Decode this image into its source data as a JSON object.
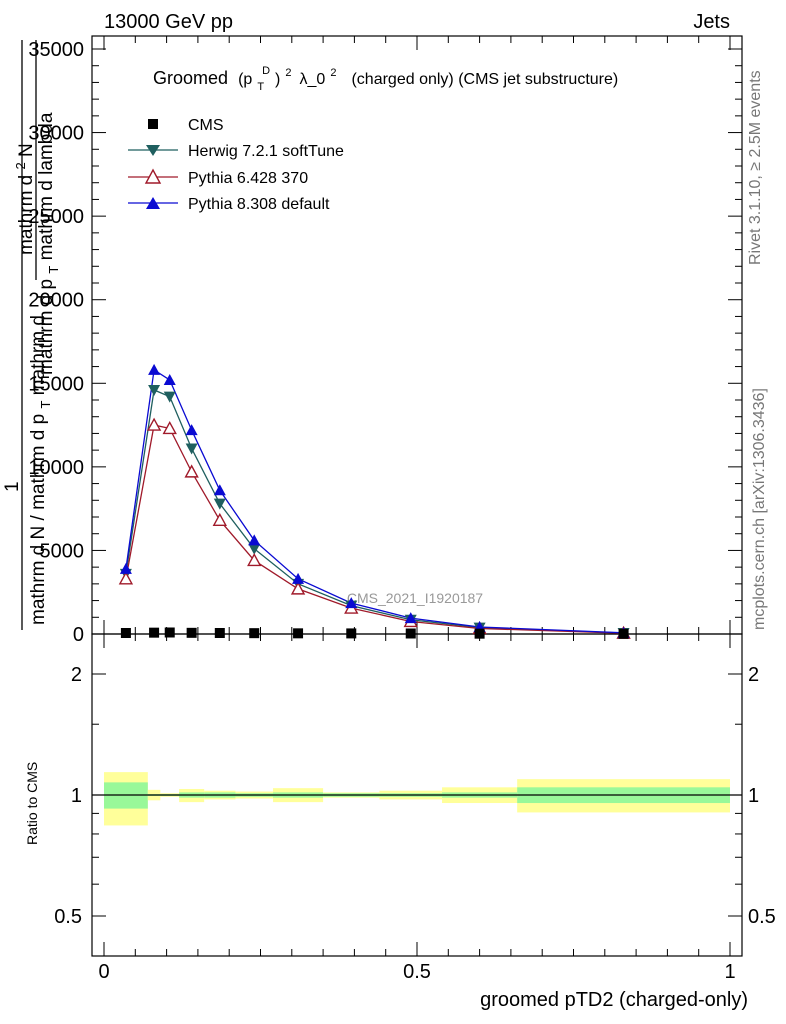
{
  "header": {
    "left": "13000 GeV pp",
    "right": "Jets"
  },
  "side": {
    "rivet": "Rivet 3.1.10, ≥ 2.5M events",
    "mcplots": "mcplots.cern.ch [arXiv:1306.3436]"
  },
  "watermark": "CMS_2021_I1920187",
  "chart_data": {
    "type": "line",
    "title": {
      "prefix": "Groomed",
      "formula": "(p",
      "sup_d": "D",
      "sub_t": "T",
      "sup_2": "2",
      "lambda": "λ_0",
      "sup_2b": "2",
      "suffix": "(charged only) (CMS jet substructure)"
    },
    "ylabel": {
      "num_top": "mathrm d",
      "num_sup": "2",
      "num_N": "N",
      "den": "mathrm d p",
      "den_sub": "T",
      "den_rest": " mathrm d lambda",
      "one": "1",
      "left_den": "mathrm d N / mathrm d p",
      "left_sub": "T",
      "left_rest": " mathrm d"
    },
    "xlabel": "groomed pTD2 (charged-only)",
    "ratio_ylabel": "Ratio to CMS",
    "xlim": [
      0,
      1
    ],
    "ylim": [
      0,
      35000
    ],
    "ratio_ylim": [
      0.4,
      2.3
    ],
    "x_ticks": [
      0,
      0.5,
      1
    ],
    "x_tick_labels": [
      "0",
      "0.5",
      "1"
    ],
    "y_ticks": [
      0,
      5000,
      10000,
      15000,
      20000,
      25000,
      30000,
      35000
    ],
    "y_tick_labels": [
      "0",
      "5000",
      "10000",
      "15000",
      "20000",
      "25000",
      "30000",
      "35000"
    ],
    "ratio_ticks": [
      0.5,
      1,
      2
    ],
    "ratio_tick_labels": [
      "0.5",
      "1",
      "2"
    ],
    "x": [
      0.035,
      0.08,
      0.105,
      0.14,
      0.185,
      0.24,
      0.31,
      0.395,
      0.49,
      0.6,
      0.83
    ],
    "bin_edges": [
      0,
      0.07,
      0.09,
      0.12,
      0.16,
      0.21,
      0.27,
      0.35,
      0.44,
      0.54,
      0.66,
      1.0
    ],
    "cms": [
      60,
      80,
      90,
      70,
      60,
      50,
      40,
      35,
      30,
      20,
      10
    ],
    "series": [
      {
        "name": "CMS",
        "color": "#000000",
        "marker": "square"
      },
      {
        "name": "Herwig 7.2.1 softTune",
        "color": "#1f5f5f",
        "marker": "triangle-down",
        "values": [
          3600,
          14600,
          14200,
          11100,
          7800,
          5100,
          3000,
          1700,
          850,
          380,
          60
        ]
      },
      {
        "name": "Pythia 6.428 370",
        "color": "#a01a2a",
        "marker": "triangle-up-open",
        "values": [
          3300,
          12500,
          12300,
          9700,
          6800,
          4400,
          2700,
          1550,
          750,
          330,
          50
        ]
      },
      {
        "name": "Pythia 8.308 default",
        "color": "#0a0ad2",
        "marker": "triangle-up",
        "values": [
          3900,
          15800,
          15200,
          12200,
          8600,
          5600,
          3300,
          1850,
          950,
          420,
          70
        ]
      }
    ],
    "ratio_bands": {
      "stat_color": "#99f899",
      "total_color": "#ffff9a",
      "stat_lo": [
        0.925,
        0.995,
        0.995,
        0.985,
        0.985,
        0.99,
        0.985,
        0.99,
        0.99,
        0.985,
        0.955
      ],
      "stat_hi": [
        1.075,
        1.005,
        1.005,
        1.015,
        1.015,
        1.01,
        1.015,
        1.01,
        1.01,
        1.015,
        1.045
      ],
      "total_lo": [
        0.84,
        0.97,
        0.99,
        0.96,
        0.975,
        0.98,
        0.96,
        0.985,
        0.975,
        0.955,
        0.905
      ],
      "total_hi": [
        1.14,
        1.03,
        1.01,
        1.035,
        1.025,
        1.02,
        1.04,
        1.015,
        1.025,
        1.045,
        1.095
      ]
    }
  }
}
